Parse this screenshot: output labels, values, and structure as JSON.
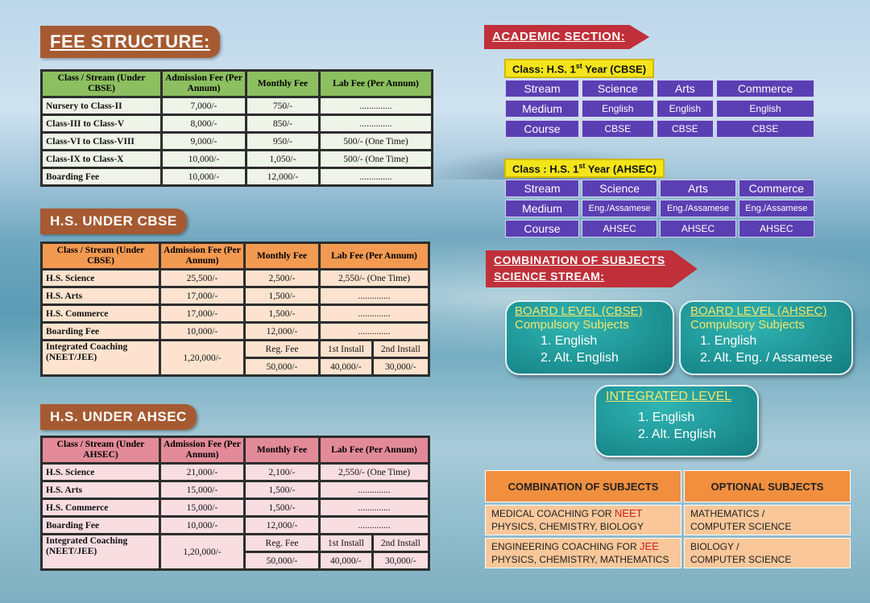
{
  "fee_structure": {
    "title": "FEE STRUCTURE:",
    "headers": [
      "Class / Stream (Under CBSE)",
      "Admission Fee (Per Annum)",
      "Monthly Fee",
      "Lab Fee (Per Annum)"
    ],
    "rows": [
      [
        "Nursery to Class-II",
        "7,000/-",
        "750/-",
        ".............."
      ],
      [
        "Class-III to Class-V",
        "8,000/-",
        "850/-",
        ".............."
      ],
      [
        "Class-VI to Class-VIII",
        "9,000/-",
        "950/-",
        "500/- (One Time)"
      ],
      [
        "Class-IX to Class-X",
        "10,000/-",
        "1,050/-",
        "500/- (One Time)"
      ],
      [
        "Boarding Fee",
        "10,000/-",
        "12,000/-",
        ".............."
      ]
    ]
  },
  "hs_cbse": {
    "title": "H.S. UNDER CBSE",
    "headers": [
      "Class / Stream (Under CBSE)",
      "Admission Fee (Per Annum)",
      "Monthly Fee",
      "Lab Fee (Per Annum)"
    ],
    "rows": [
      [
        "H.S. Science",
        "25,500/-",
        "2,500/-",
        "2,550/- (One Time)"
      ],
      [
        "H.S. Arts",
        "17,000/-",
        "1,500/-",
        ".............."
      ],
      [
        "H.S. Commerce",
        "17,000/-",
        "1,500/-",
        ".............."
      ],
      [
        "Boarding Fee",
        "10,000/-",
        "12,000/-",
        ".............."
      ]
    ],
    "coaching": {
      "label": "Integrated Coaching (NEET/JEE)",
      "admission": "1,20,000/-",
      "reg_label": "Reg. Fee",
      "reg_value": "50,000/-",
      "first_label": "1st Install",
      "first_value": "40,000/-",
      "second_label": "2nd Install",
      "second_value": "30,000/-"
    }
  },
  "hs_ahsec": {
    "title": "H.S. UNDER AHSEC",
    "headers": [
      "Class / Stream (Under AHSEC)",
      "Admission Fee (Per Annum)",
      "Monthly Fee",
      "Lab Fee (Per Annum)"
    ],
    "rows": [
      [
        "H.S. Science",
        "21,000/-",
        "2,100/-",
        "2,550/- (One Time)"
      ],
      [
        "H.S. Arts",
        "15,000/-",
        "1,500/-",
        ".............."
      ],
      [
        "H.S. Commerce",
        "15,000/-",
        "1,500/-",
        ".............."
      ],
      [
        "Boarding Fee",
        "10,000/-",
        "12,000/-",
        ".............."
      ]
    ],
    "coaching": {
      "label": "Integrated Coaching (NEET/JEE)",
      "admission": "1,20,000/-",
      "reg_label": "Reg. Fee",
      "reg_value": "50,000/-",
      "first_label": "1st Install",
      "first_value": "40,000/-",
      "second_label": "2nd Install",
      "second_value": "30,000/-"
    }
  },
  "academic": {
    "title": "ACADEMIC SECTION:",
    "cbse": {
      "class_prefix": "Class:  H.S. 1",
      "sup": "st",
      "class_suffix": " Year (CBSE)",
      "rows": [
        [
          "Stream",
          "Science",
          "Arts",
          "Commerce"
        ],
        [
          "Medium",
          "English",
          "English",
          "English"
        ],
        [
          "Course",
          "CBSE",
          "CBSE",
          "CBSE"
        ]
      ]
    },
    "ahsec": {
      "class_prefix": "Class :  H.S. 1",
      "sup": "st",
      "class_suffix": " Year (AHSEC)",
      "rows": [
        [
          "Stream",
          "Science",
          "Arts",
          "Commerce"
        ],
        [
          "Medium",
          "Eng./Assamese",
          "Eng./Assamese",
          "Eng./Assamese"
        ],
        [
          "Course",
          "AHSEC",
          "AHSEC",
          "AHSEC"
        ]
      ]
    }
  },
  "combination": {
    "title_line1": "COMBINATION OF SUBJECTS",
    "title_line2": "SCIENCE STREAM:",
    "cbse": {
      "title": "BOARD LEVEL (CBSE)",
      "subtitle": "Compulsory Subjects",
      "items": [
        "1. English",
        "2. Alt. English"
      ]
    },
    "ahsec": {
      "title": "BOARD LEVEL (AHSEC)",
      "subtitle": "Compulsory Subjects",
      "items": [
        "1. English",
        "2. Alt. Eng. / Assamese"
      ]
    },
    "integrated": {
      "title": "INTEGRATED LEVEL",
      "items": [
        "1. English",
        "2. Alt. English"
      ]
    }
  },
  "subjects_table": {
    "headers": [
      "COMBINATION OF SUBJECTS",
      "OPTIONAL SUBJECTS"
    ],
    "rows": [
      {
        "prefix": "MEDICAL COACHING  FOR ",
        "highlight": "NEET",
        "line2": "PHYSICS, CHEMISTRY, BIOLOGY",
        "opt1": "MATHEMATICS /",
        "opt2": "COMPUTER SCIENCE"
      },
      {
        "prefix": "ENGINEERING COACHING  FOR ",
        "highlight": "JEE",
        "line2": "PHYSICS, CHEMISTRY, MATHEMATICS",
        "opt1": "BIOLOGY /",
        "opt2": "COMPUTER SCIENCE"
      }
    ]
  }
}
